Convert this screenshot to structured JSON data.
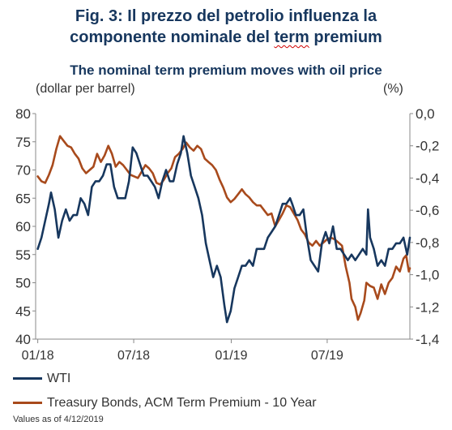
{
  "figure": {
    "title_line1": "Fig. 3: Il prezzo del petrolio influenza la",
    "title_line2_plain": "componente nominale del ",
    "title_line2_underlined": "term",
    "title_line2_end": " premium",
    "footer": "Values as of 4/12/2019"
  },
  "chart_data": {
    "type": "line",
    "title": "The nominal term premium moves with oil price",
    "left_axis_unit": "(dollar per barrel)",
    "right_axis_unit": "(%)",
    "x_tick_labels": [
      "01/18",
      "07/18",
      "01/19",
      "07/19"
    ],
    "x_ticks": [
      "2018-01-01",
      "2018-07-01",
      "2019-01-01",
      "2019-07-01"
    ],
    "x_range": [
      "2017-12-28",
      "2019-12-04"
    ],
    "y_left_range": [
      40,
      80
    ],
    "y_left_ticks": [
      "80",
      "75",
      "70",
      "65",
      "60",
      "55",
      "50",
      "45",
      "40"
    ],
    "y_right_range": [
      -1.4,
      0.0
    ],
    "y_right_ticks": [
      "0,0",
      "-0,2",
      "-0,4",
      "-0,6",
      "-0,8",
      "-1,0",
      "-1,2",
      "-1,4"
    ],
    "grid": false,
    "legend_position": "bottom",
    "series": [
      {
        "name": "WTI",
        "axis": "left",
        "color": "#17375e",
        "points": [
          [
            "2018-01-01",
            56
          ],
          [
            "2018-01-08",
            58
          ],
          [
            "2018-01-15",
            61
          ],
          [
            "2018-01-22",
            64
          ],
          [
            "2018-01-26",
            66
          ],
          [
            "2018-02-02",
            63
          ],
          [
            "2018-02-09",
            58
          ],
          [
            "2018-02-16",
            61
          ],
          [
            "2018-02-23",
            63
          ],
          [
            "2018-03-02",
            61
          ],
          [
            "2018-03-09",
            62
          ],
          [
            "2018-03-16",
            62
          ],
          [
            "2018-03-23",
            65
          ],
          [
            "2018-03-30",
            64
          ],
          [
            "2018-04-06",
            62
          ],
          [
            "2018-04-13",
            67
          ],
          [
            "2018-04-20",
            68
          ],
          [
            "2018-04-27",
            68
          ],
          [
            "2018-05-04",
            69
          ],
          [
            "2018-05-11",
            71
          ],
          [
            "2018-05-18",
            71
          ],
          [
            "2018-05-25",
            67
          ],
          [
            "2018-06-01",
            65
          ],
          [
            "2018-06-08",
            65
          ],
          [
            "2018-06-15",
            65
          ],
          [
            "2018-06-22",
            68
          ],
          [
            "2018-06-29",
            74
          ],
          [
            "2018-07-06",
            73
          ],
          [
            "2018-07-13",
            71
          ],
          [
            "2018-07-20",
            69
          ],
          [
            "2018-07-27",
            69
          ],
          [
            "2018-08-03",
            68
          ],
          [
            "2018-08-10",
            67
          ],
          [
            "2018-08-17",
            65
          ],
          [
            "2018-08-24",
            68
          ],
          [
            "2018-08-31",
            70
          ],
          [
            "2018-09-07",
            68
          ],
          [
            "2018-09-14",
            68
          ],
          [
            "2018-09-21",
            71
          ],
          [
            "2018-09-28",
            73
          ],
          [
            "2018-10-03",
            76
          ],
          [
            "2018-10-10",
            73
          ],
          [
            "2018-10-17",
            69
          ],
          [
            "2018-10-24",
            67
          ],
          [
            "2018-10-31",
            65
          ],
          [
            "2018-11-07",
            62
          ],
          [
            "2018-11-14",
            57
          ],
          [
            "2018-11-21",
            54
          ],
          [
            "2018-11-28",
            51
          ],
          [
            "2018-12-05",
            53
          ],
          [
            "2018-12-12",
            51
          ],
          [
            "2018-12-19",
            46
          ],
          [
            "2018-12-24",
            43
          ],
          [
            "2018-12-31",
            45
          ],
          [
            "2019-01-07",
            49
          ],
          [
            "2019-01-14",
            51
          ],
          [
            "2019-01-21",
            53
          ],
          [
            "2019-01-28",
            53
          ],
          [
            "2019-02-04",
            54
          ],
          [
            "2019-02-11",
            53
          ],
          [
            "2019-02-18",
            56
          ],
          [
            "2019-02-25",
            56
          ],
          [
            "2019-03-04",
            56
          ],
          [
            "2019-03-11",
            58
          ],
          [
            "2019-03-18",
            59
          ],
          [
            "2019-03-25",
            60
          ],
          [
            "2019-04-01",
            62
          ],
          [
            "2019-04-08",
            64
          ],
          [
            "2019-04-15",
            64
          ],
          [
            "2019-04-22",
            65
          ],
          [
            "2019-04-26",
            64
          ],
          [
            "2019-05-03",
            62
          ],
          [
            "2019-05-10",
            62
          ],
          [
            "2019-05-17",
            63
          ],
          [
            "2019-05-24",
            58
          ],
          [
            "2019-05-31",
            54
          ],
          [
            "2019-06-07",
            53
          ],
          [
            "2019-06-14",
            52
          ],
          [
            "2019-06-21",
            57
          ],
          [
            "2019-06-28",
            59
          ],
          [
            "2019-07-05",
            57
          ],
          [
            "2019-07-12",
            60
          ],
          [
            "2019-07-19",
            56
          ],
          [
            "2019-07-26",
            56
          ],
          [
            "2019-08-02",
            55
          ],
          [
            "2019-08-09",
            54
          ],
          [
            "2019-08-16",
            55
          ],
          [
            "2019-08-23",
            54
          ],
          [
            "2019-08-30",
            55
          ],
          [
            "2019-09-06",
            56
          ],
          [
            "2019-09-13",
            55
          ],
          [
            "2019-09-16",
            63
          ],
          [
            "2019-09-20",
            58
          ],
          [
            "2019-09-27",
            56
          ],
          [
            "2019-10-04",
            53
          ],
          [
            "2019-10-11",
            54
          ],
          [
            "2019-10-18",
            53
          ],
          [
            "2019-10-25",
            56
          ],
          [
            "2019-11-01",
            56
          ],
          [
            "2019-11-08",
            57
          ],
          [
            "2019-11-15",
            57
          ],
          [
            "2019-11-22",
            58
          ],
          [
            "2019-11-29",
            55
          ],
          [
            "2019-12-04",
            58
          ]
        ]
      },
      {
        "name": "Treasury Bonds, ACM Term Premium - 10 Year",
        "axis": "right",
        "color": "#a84a1c",
        "points": [
          [
            "2018-01-01",
            -0.39
          ],
          [
            "2018-01-08",
            -0.42
          ],
          [
            "2018-01-15",
            -0.43
          ],
          [
            "2018-01-22",
            -0.38
          ],
          [
            "2018-01-29",
            -0.32
          ],
          [
            "2018-02-05",
            -0.22
          ],
          [
            "2018-02-12",
            -0.14
          ],
          [
            "2018-02-19",
            -0.17
          ],
          [
            "2018-02-26",
            -0.2
          ],
          [
            "2018-03-05",
            -0.21
          ],
          [
            "2018-03-12",
            -0.25
          ],
          [
            "2018-03-19",
            -0.28
          ],
          [
            "2018-03-26",
            -0.34
          ],
          [
            "2018-04-02",
            -0.37
          ],
          [
            "2018-04-09",
            -0.35
          ],
          [
            "2018-04-16",
            -0.33
          ],
          [
            "2018-04-23",
            -0.25
          ],
          [
            "2018-04-30",
            -0.3
          ],
          [
            "2018-05-07",
            -0.26
          ],
          [
            "2018-05-14",
            -0.2
          ],
          [
            "2018-05-21",
            -0.25
          ],
          [
            "2018-05-28",
            -0.33
          ],
          [
            "2018-06-04",
            -0.3
          ],
          [
            "2018-06-11",
            -0.32
          ],
          [
            "2018-06-18",
            -0.35
          ],
          [
            "2018-06-25",
            -0.38
          ],
          [
            "2018-07-02",
            -0.39
          ],
          [
            "2018-07-09",
            -0.4
          ],
          [
            "2018-07-16",
            -0.36
          ],
          [
            "2018-07-23",
            -0.32
          ],
          [
            "2018-07-30",
            -0.34
          ],
          [
            "2018-08-06",
            -0.37
          ],
          [
            "2018-08-13",
            -0.43
          ],
          [
            "2018-08-20",
            -0.44
          ],
          [
            "2018-08-27",
            -0.41
          ],
          [
            "2018-09-03",
            -0.37
          ],
          [
            "2018-09-10",
            -0.34
          ],
          [
            "2018-09-17",
            -0.27
          ],
          [
            "2018-09-24",
            -0.25
          ],
          [
            "2018-10-01",
            -0.22
          ],
          [
            "2018-10-08",
            -0.18
          ],
          [
            "2018-10-15",
            -0.21
          ],
          [
            "2018-10-22",
            -0.23
          ],
          [
            "2018-10-29",
            -0.2
          ],
          [
            "2018-11-05",
            -0.22
          ],
          [
            "2018-11-12",
            -0.28
          ],
          [
            "2018-11-19",
            -0.3
          ],
          [
            "2018-11-26",
            -0.32
          ],
          [
            "2018-12-03",
            -0.35
          ],
          [
            "2018-12-10",
            -0.41
          ],
          [
            "2018-12-17",
            -0.46
          ],
          [
            "2018-12-24",
            -0.52
          ],
          [
            "2018-12-31",
            -0.55
          ],
          [
            "2019-01-07",
            -0.53
          ],
          [
            "2019-01-14",
            -0.5
          ],
          [
            "2019-01-21",
            -0.47
          ],
          [
            "2019-01-28",
            -0.5
          ],
          [
            "2019-02-04",
            -0.52
          ],
          [
            "2019-02-11",
            -0.55
          ],
          [
            "2019-02-18",
            -0.57
          ],
          [
            "2019-02-25",
            -0.57
          ],
          [
            "2019-03-04",
            -0.6
          ],
          [
            "2019-03-11",
            -0.63
          ],
          [
            "2019-03-18",
            -0.62
          ],
          [
            "2019-03-25",
            -0.7
          ],
          [
            "2019-04-01",
            -0.66
          ],
          [
            "2019-04-08",
            -0.62
          ],
          [
            "2019-04-15",
            -0.57
          ],
          [
            "2019-04-22",
            -0.58
          ],
          [
            "2019-04-29",
            -0.62
          ],
          [
            "2019-05-06",
            -0.66
          ],
          [
            "2019-05-13",
            -0.72
          ],
          [
            "2019-05-20",
            -0.75
          ],
          [
            "2019-05-27",
            -0.8
          ],
          [
            "2019-06-03",
            -0.82
          ],
          [
            "2019-06-10",
            -0.79
          ],
          [
            "2019-06-17",
            -0.82
          ],
          [
            "2019-06-24",
            -0.8
          ],
          [
            "2019-07-01",
            -0.78
          ],
          [
            "2019-07-08",
            -0.77
          ],
          [
            "2019-07-15",
            -0.78
          ],
          [
            "2019-07-22",
            -0.8
          ],
          [
            "2019-07-29",
            -0.82
          ],
          [
            "2019-08-05",
            -0.95
          ],
          [
            "2019-08-12",
            -1.05
          ],
          [
            "2019-08-16",
            -1.15
          ],
          [
            "2019-08-23",
            -1.2
          ],
          [
            "2019-08-28",
            -1.28
          ],
          [
            "2019-09-02",
            -1.24
          ],
          [
            "2019-09-09",
            -1.16
          ],
          [
            "2019-09-13",
            -1.05
          ],
          [
            "2019-09-20",
            -1.07
          ],
          [
            "2019-09-27",
            -1.08
          ],
          [
            "2019-10-04",
            -1.15
          ],
          [
            "2019-10-11",
            -1.06
          ],
          [
            "2019-10-18",
            -1.12
          ],
          [
            "2019-10-25",
            -1.05
          ],
          [
            "2019-11-01",
            -1.02
          ],
          [
            "2019-11-08",
            -0.95
          ],
          [
            "2019-11-15",
            -0.98
          ],
          [
            "2019-11-22",
            -0.9
          ],
          [
            "2019-11-27",
            -0.88
          ],
          [
            "2019-12-02",
            -0.98
          ],
          [
            "2019-12-04",
            -0.96
          ]
        ]
      }
    ]
  }
}
